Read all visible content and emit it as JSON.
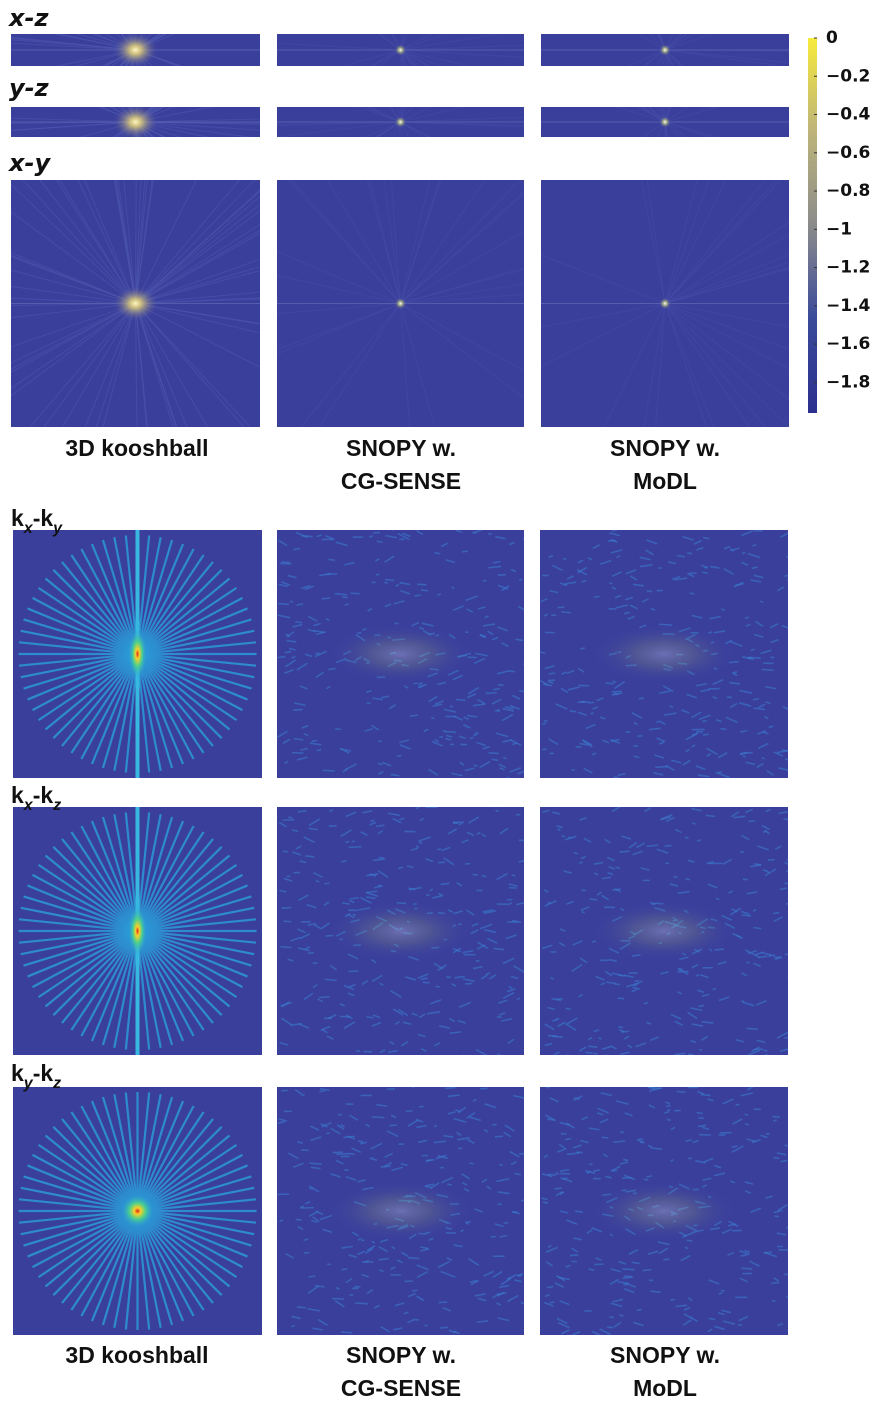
{
  "top_row_labels": [
    "x-z",
    "y-z",
    "x-y"
  ],
  "top_column_labels": [
    [
      "3D kooshball"
    ],
    [
      "SNOPY w.",
      "CG-SENSE"
    ],
    [
      "SNOPY w.",
      "MoDL"
    ]
  ],
  "colorbar": {
    "ylim": [
      -1.96,
      0
    ],
    "yticks": [
      0,
      {
        "value": -0.2,
        "label": "−0.2"
      },
      {
        "value": -0.4,
        "label": "−0.4"
      },
      {
        "value": -0.6,
        "label": "−0.6"
      },
      {
        "value": -0.8,
        "label": "−0.8"
      },
      {
        "value": -1,
        "label": "−1"
      },
      {
        "value": -1.2,
        "label": "−1.2"
      },
      {
        "value": -1.4,
        "label": "−1.4"
      },
      {
        "value": -1.6,
        "label": "−1.6"
      },
      {
        "value": -1.8,
        "label": "−1.8"
      }
    ]
  },
  "kspace_row_labels": [
    [
      "k",
      "x",
      "-k",
      "y"
    ],
    [
      "k",
      "x",
      "-k",
      "z"
    ],
    [
      "k",
      "y",
      "-k",
      "z"
    ]
  ],
  "bottom_column_labels": [
    [
      "3D kooshball"
    ],
    [
      "SNOPY w.",
      "CG-SENSE"
    ],
    [
      "SNOPY w.",
      "MoDL"
    ]
  ]
}
